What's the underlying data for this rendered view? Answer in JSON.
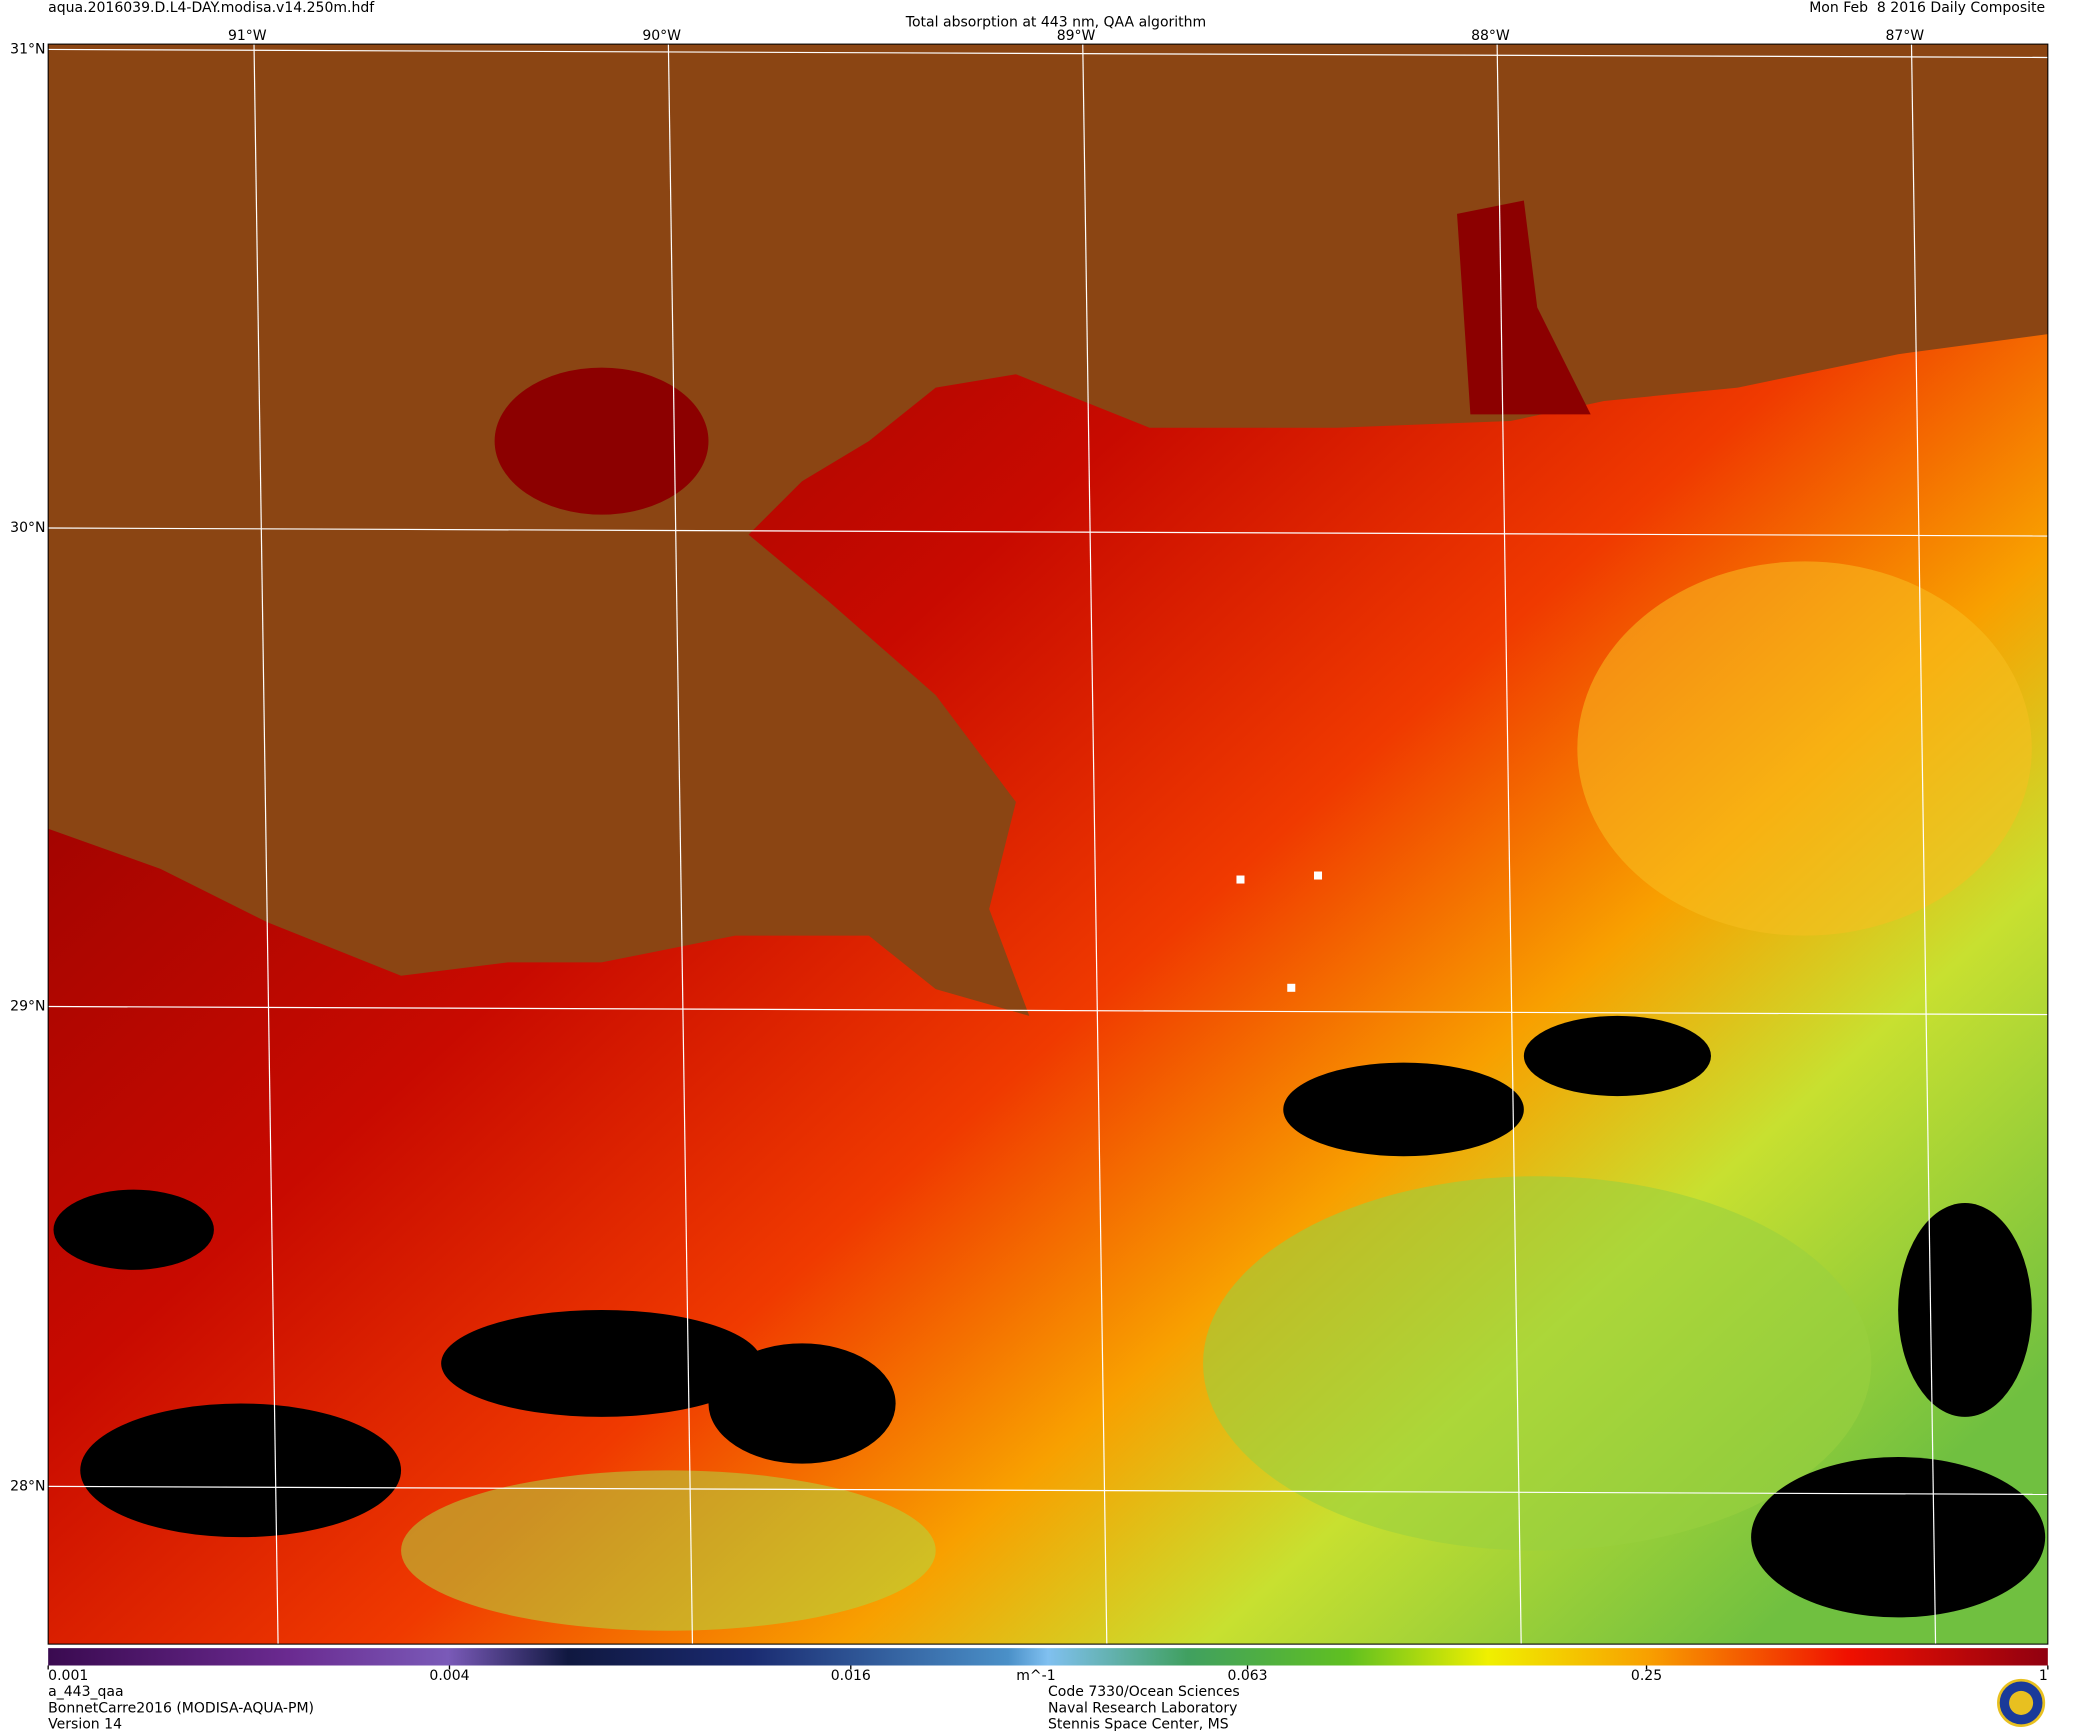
{
  "header": {
    "file": "aqua.2016039.D.L4-DAY.modisa.v14.250m.hdf",
    "title": "Total absorption at 443 nm, QAA algorithm",
    "date": "Mon Feb  8 2016 Daily Composite"
  },
  "map": {
    "lon_labels": [
      "91°W",
      "90°W",
      "89°W",
      "88°W",
      "87°W"
    ],
    "lat_labels": [
      "31°N",
      "30°N",
      "29°N",
      "28°N"
    ]
  },
  "colorbar": {
    "min": 0.001,
    "max": 1,
    "ticks": [
      0.001,
      0.004,
      0.016,
      0.063,
      0.25,
      1
    ],
    "unit": "m^-1"
  },
  "footer": {
    "left": [
      "a_443_qaa",
      "BonnetCarre2016 (MODISA-AQUA-PM)",
      "Version 14"
    ],
    "center": [
      "Code 7330/Ocean Sciences",
      "Naval Research Laboratory",
      "Stennis Space Center, MS"
    ]
  }
}
